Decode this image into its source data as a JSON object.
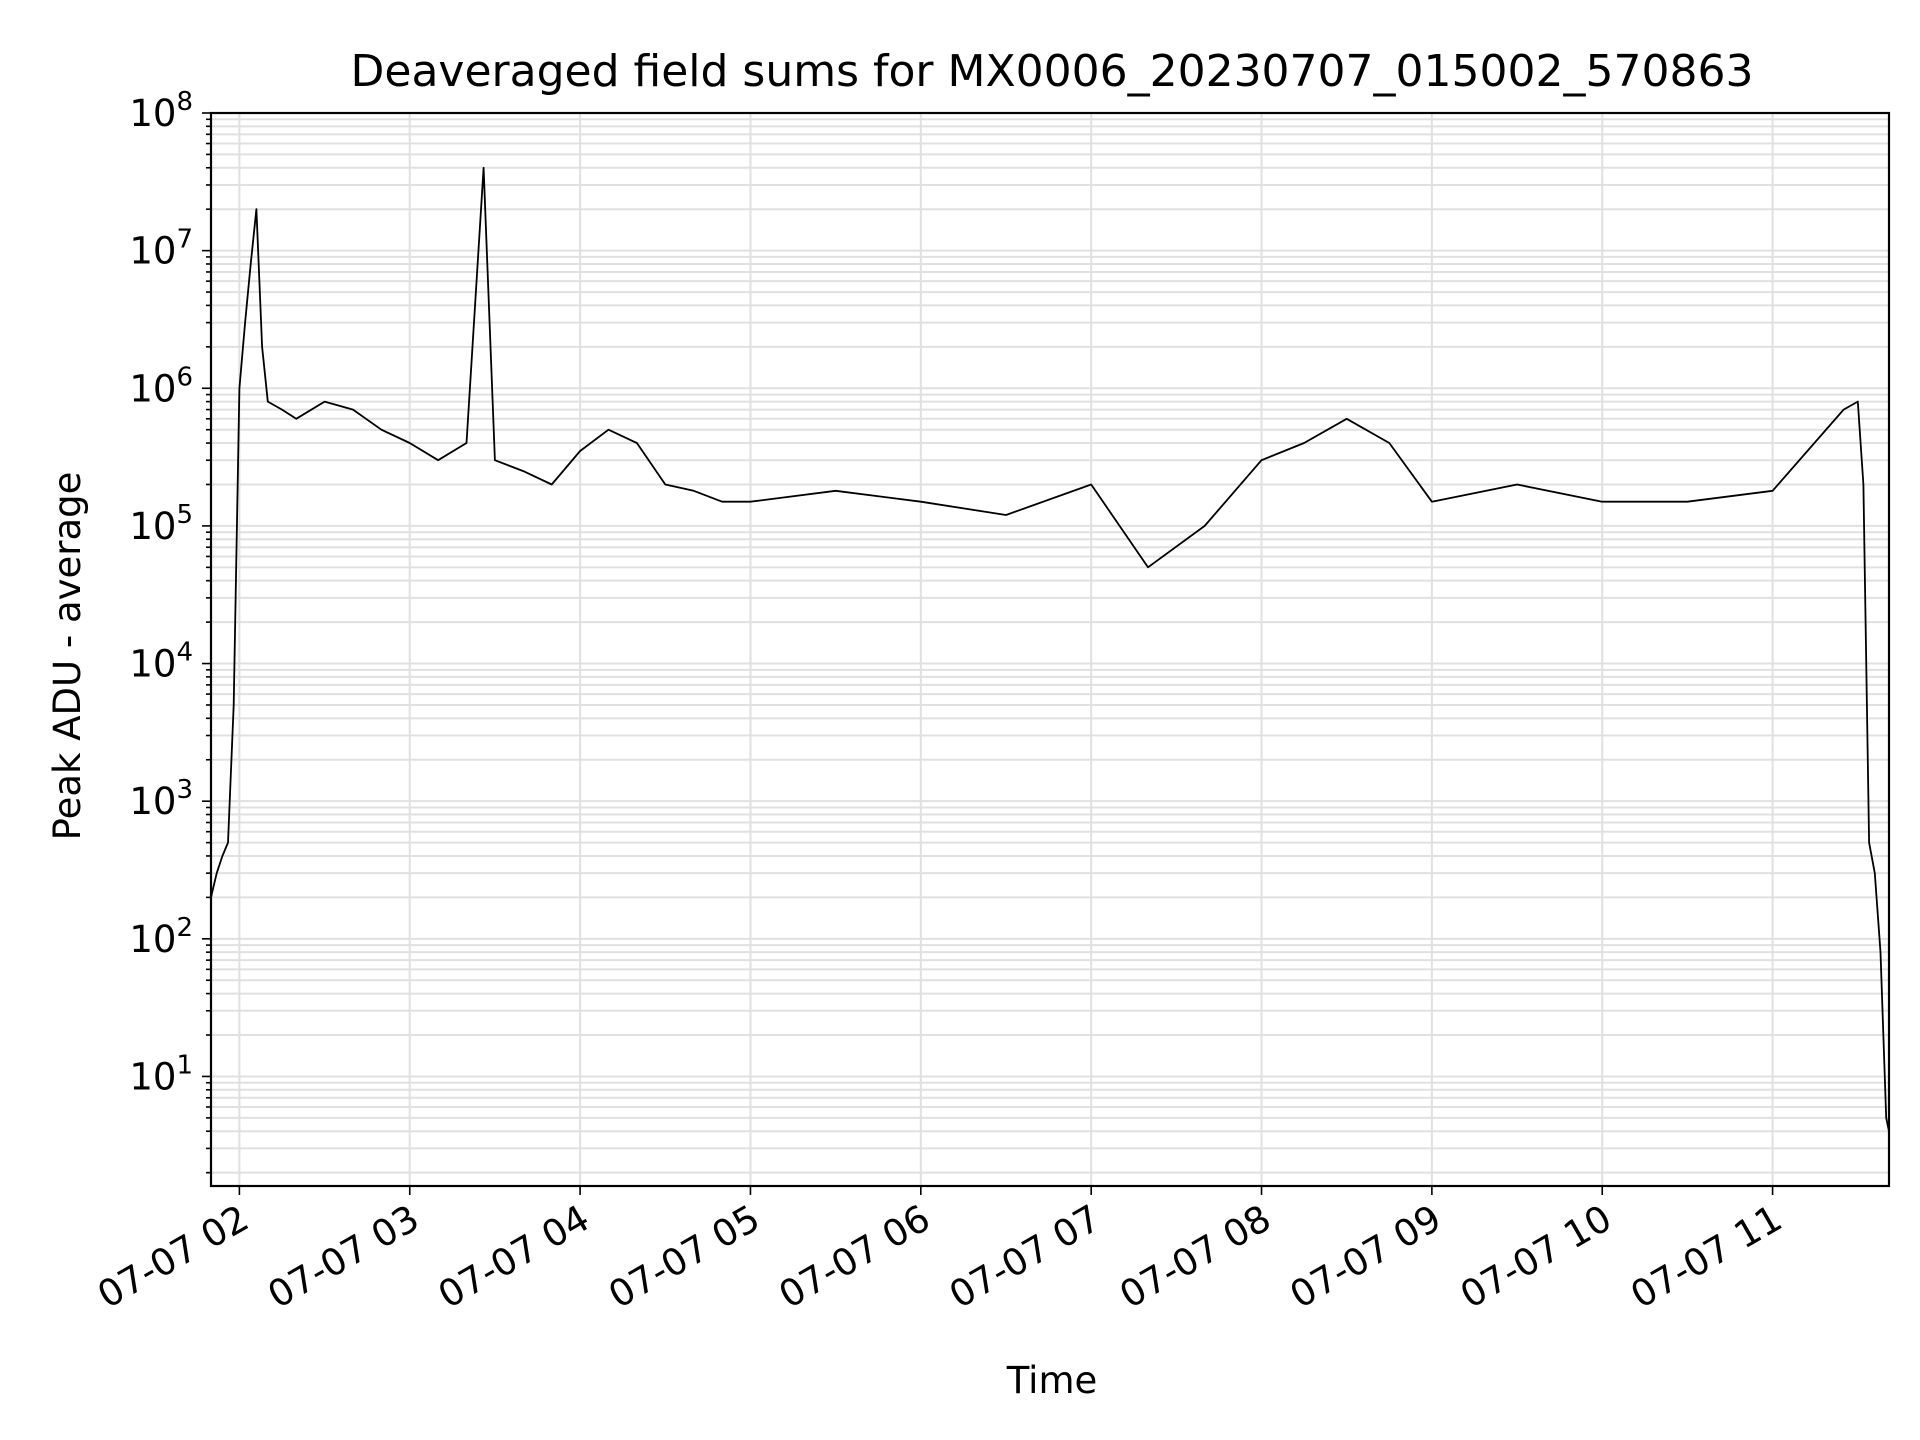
{
  "chart_data": {
    "type": "line",
    "title": "Deaveraged field sums for MX0006_20230707_015002_570863",
    "xlabel": "Time",
    "ylabel": "Peak ADU - average",
    "y_scale": "log",
    "ylim": [
      1.6,
      100000000
    ],
    "xlim": [
      "2023-07-07 01:50",
      "2023-07-07 11:41"
    ],
    "grid": true,
    "x_ticks": [
      "07-07 02",
      "07-07 03",
      "07-07 04",
      "07-07 05",
      "07-07 06",
      "07-07 07",
      "07-07 08",
      "07-07 09",
      "07-07 10",
      "07-07 11"
    ],
    "y_ticks": [
      {
        "base": "10",
        "exp": "1"
      },
      {
        "base": "10",
        "exp": "2"
      },
      {
        "base": "10",
        "exp": "3"
      },
      {
        "base": "10",
        "exp": "4"
      },
      {
        "base": "10",
        "exp": "5"
      },
      {
        "base": "10",
        "exp": "6"
      },
      {
        "base": "10",
        "exp": "7"
      },
      {
        "base": "10",
        "exp": "8"
      }
    ],
    "line_color": "#000000",
    "grid_color": "#e0e0e0",
    "series": [
      {
        "x": [
          "2023-07-07 01:50",
          "2023-07-07 01:52",
          "2023-07-07 01:54",
          "2023-07-07 01:56",
          "2023-07-07 01:58",
          "2023-07-07 02:00",
          "2023-07-07 02:02",
          "2023-07-07 02:04",
          "2023-07-07 02:06",
          "2023-07-07 02:08",
          "2023-07-07 02:10",
          "2023-07-07 02:15",
          "2023-07-07 02:20",
          "2023-07-07 02:30",
          "2023-07-07 02:40",
          "2023-07-07 02:50",
          "2023-07-07 03:00",
          "2023-07-07 03:10",
          "2023-07-07 03:20",
          "2023-07-07 03:26",
          "2023-07-07 03:30",
          "2023-07-07 03:40",
          "2023-07-07 03:50",
          "2023-07-07 04:00",
          "2023-07-07 04:10",
          "2023-07-07 04:20",
          "2023-07-07 04:30",
          "2023-07-07 04:40",
          "2023-07-07 04:50",
          "2023-07-07 05:00",
          "2023-07-07 05:30",
          "2023-07-07 06:00",
          "2023-07-07 06:30",
          "2023-07-07 07:00",
          "2023-07-07 07:20",
          "2023-07-07 07:40",
          "2023-07-07 08:00",
          "2023-07-07 08:15",
          "2023-07-07 08:30",
          "2023-07-07 08:45",
          "2023-07-07 09:00",
          "2023-07-07 09:30",
          "2023-07-07 10:00",
          "2023-07-07 10:30",
          "2023-07-07 11:00",
          "2023-07-07 11:25",
          "2023-07-07 11:30",
          "2023-07-07 11:32",
          "2023-07-07 11:34",
          "2023-07-07 11:36",
          "2023-07-07 11:38",
          "2023-07-07 11:40",
          "2023-07-07 11:41"
        ],
        "values": [
          200,
          300,
          400,
          500,
          5000,
          1000000,
          3000000,
          8000000,
          20000000,
          2000000,
          800000,
          700000,
          600000,
          800000,
          700000,
          500000,
          400000,
          300000,
          400000,
          40000000,
          300000,
          250000,
          200000,
          350000,
          500000,
          400000,
          200000,
          180000,
          150000,
          150000,
          180000,
          150000,
          120000,
          200000,
          50000,
          100000,
          300000,
          400000,
          600000,
          400000,
          150000,
          200000,
          150000,
          150000,
          180000,
          700000,
          800000,
          200000,
          500,
          300,
          80,
          5,
          4
        ]
      }
    ]
  }
}
